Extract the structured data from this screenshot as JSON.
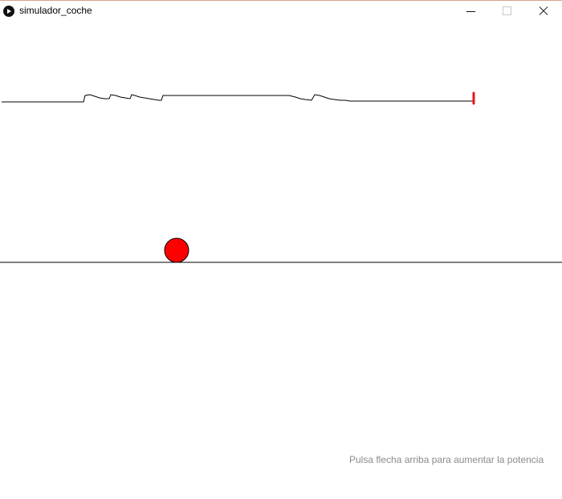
{
  "window": {
    "title": "simulador_coche",
    "controls": {
      "minimize": "minimize-icon",
      "maximize": "maximize-icon",
      "close": "close-icon"
    }
  },
  "sketch": {
    "hint_text": "Pulsa flecha arriba para aumentar la potencia",
    "ball_color": "#ff0000",
    "marker_color": "#e8141c",
    "line_color": "#000000",
    "hint_color": "#8a8a8a"
  }
}
